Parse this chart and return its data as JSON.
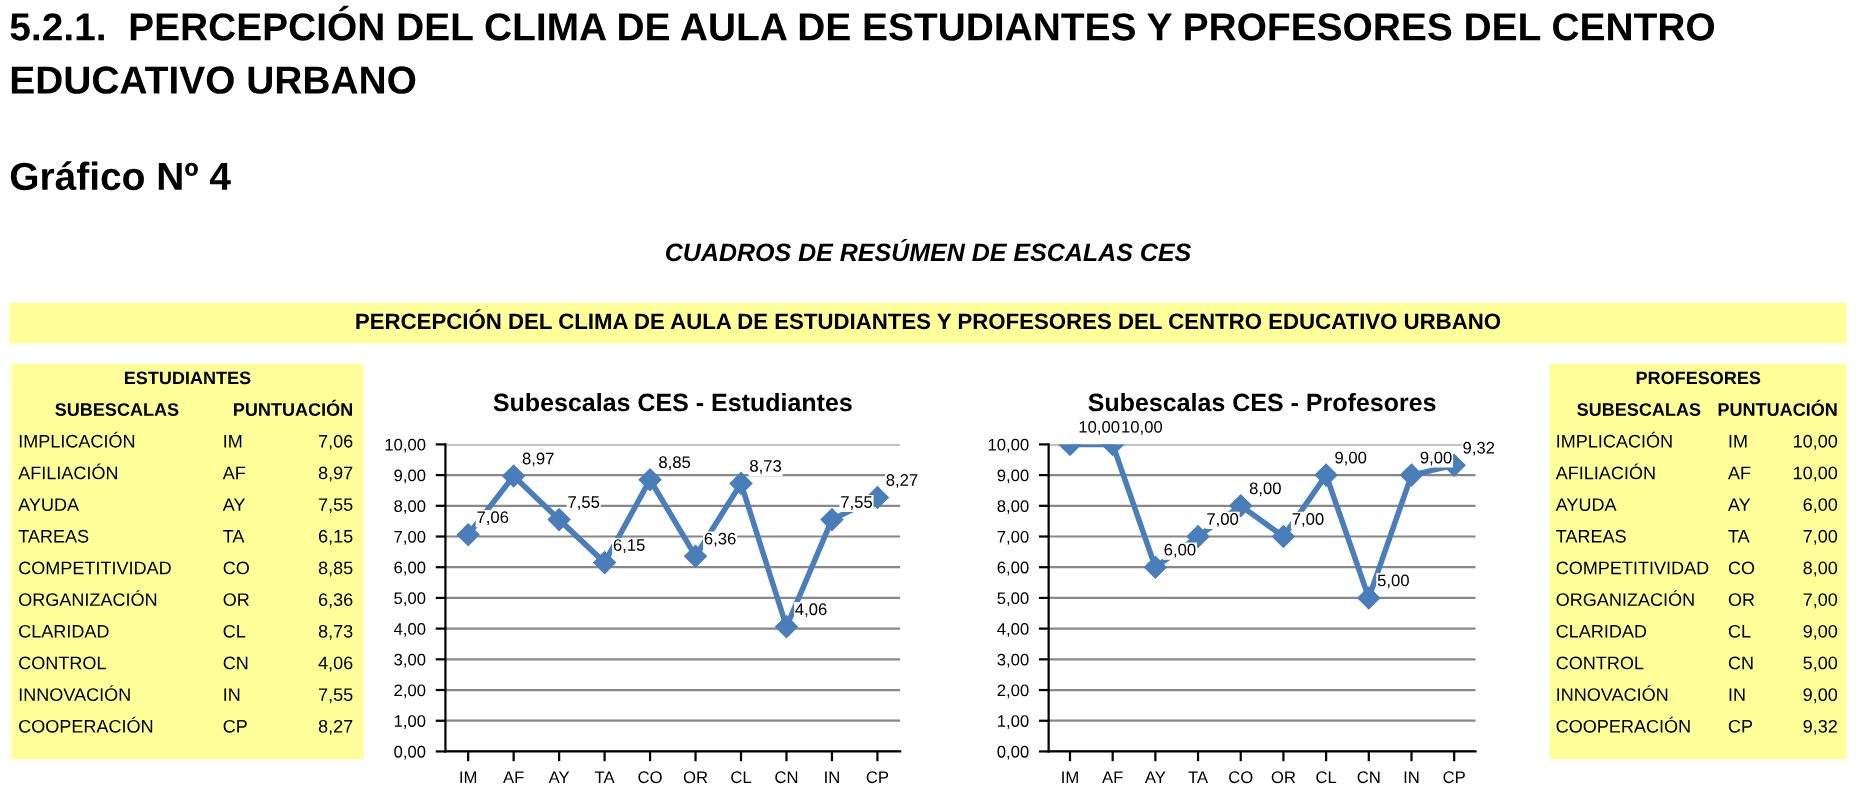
{
  "chart_data": [
    {
      "type": "other",
      "title": "5.2.1.  PERCEPCIÓN DEL CLIMA DE AULA DE ESTUDIANTES Y PROFESORES DEL CENTRO EDUCATIVO URBANO",
      "subtitle": "Gráfico Nº 4",
      "annotations": [
        "CUADROS DE RESÚMEN DE ESCALAS CES",
        "PERCEPCIÓN DEL CLIMA DE AULA DE ESTUDIANTES Y PROFESORES DEL CENTRO EDUCATIVO URBANO"
      ]
    },
    {
      "type": "other",
      "title": "ESTUDIANTES",
      "color": "#ffff99",
      "annotations": [
        "SUBESCALAS",
        "PUNTUACIÓN",
        "IMPLICACIÓN",
        "IM",
        "7,06",
        "AFILIACIÓN",
        "AF",
        "8,97",
        "AYUDA",
        "AY",
        "7,55",
        "TAREAS",
        "TA",
        "6,15",
        "COMPETITIVIDAD",
        "CO",
        "8,85",
        "ORGANIZACIÓN",
        "OR",
        "6,36",
        "CLARIDAD",
        "CL",
        "8,73",
        "CONTROL",
        "CN",
        "4,06",
        "INNOVACIÓN",
        "IN",
        "7,55",
        "COOPERACIÓN",
        "CP",
        "8,27"
      ]
    },
    {
      "type": "line",
      "title": "Subescalas CES - Estudiantes",
      "categories": [
        "IM",
        "AF",
        "AY",
        "TA",
        "CO",
        "OR",
        "CL",
        "CN",
        "IN",
        "CP"
      ],
      "series": [
        {
          "color": "#4a7ebb",
          "values": [
            7.06,
            8.97,
            7.55,
            6.15,
            8.85,
            6.36,
            8.73,
            4.06,
            7.55,
            8.27
          ],
          "value_labels": [
            "7,06",
            "8,97",
            "7,55",
            "6,15",
            "8,85",
            "6,36",
            "8,73",
            "4,06",
            "7,55",
            "8,27"
          ]
        }
      ],
      "ylim": [
        0,
        10
      ],
      "yticks": [
        {
          "value": 0,
          "label": "0,00"
        },
        {
          "value": 1,
          "label": "1,00"
        },
        {
          "value": 2,
          "label": "2,00"
        },
        {
          "value": 3,
          "label": "3,00"
        },
        {
          "value": 4,
          "label": "4,00"
        },
        {
          "value": 5,
          "label": "5,00"
        },
        {
          "value": 6,
          "label": "6,00"
        },
        {
          "value": 7,
          "label": "7,00"
        },
        {
          "value": 8,
          "label": "8,00"
        },
        {
          "value": 9,
          "label": "9,00"
        },
        {
          "value": 10,
          "label": "10,00"
        }
      ],
      "grid": "y",
      "marker": "diamond",
      "line_style": "solid"
    },
    {
      "type": "line",
      "title": "Subescalas CES - Profesores",
      "categories": [
        "IM",
        "AF",
        "AY",
        "TA",
        "CO",
        "OR",
        "CL",
        "CN",
        "IN",
        "CP"
      ],
      "series": [
        {
          "color": "#4a7ebb",
          "values": [
            10,
            10,
            6,
            7,
            8,
            7,
            9,
            5,
            9,
            9.32
          ],
          "value_labels": [
            "10,00",
            "10,00",
            "6,00",
            "7,00",
            "8,00",
            "7,00",
            "9,00",
            "5,00",
            "9,00",
            "9,32"
          ]
        }
      ],
      "ylim": [
        0,
        10
      ],
      "yticks": [
        {
          "value": 0,
          "label": "0,00"
        },
        {
          "value": 1,
          "label": "1,00"
        },
        {
          "value": 2,
          "label": "2,00"
        },
        {
          "value": 3,
          "label": "3,00"
        },
        {
          "value": 4,
          "label": "4,00"
        },
        {
          "value": 5,
          "label": "5,00"
        },
        {
          "value": 6,
          "label": "6,00"
        },
        {
          "value": 7,
          "label": "7,00"
        },
        {
          "value": 8,
          "label": "8,00"
        },
        {
          "value": 9,
          "label": "9,00"
        },
        {
          "value": 10,
          "label": "10,00"
        }
      ],
      "grid": "y",
      "marker": "diamond",
      "line_style": "solid"
    },
    {
      "type": "other",
      "title": "PROFESORES",
      "color": "#ffff99",
      "annotations": [
        "SUBESCALAS",
        "PUNTUACIÓN",
        "IMPLICACIÓN",
        "IM",
        "10,00",
        "AFILIACIÓN",
        "AF",
        "10,00",
        "AYUDA",
        "AY",
        "6,00",
        "TAREAS",
        "TA",
        "7,00",
        "COMPETITIVIDAD",
        "CO",
        "8,00",
        "ORGANIZACIÓN",
        "OR",
        "7,00",
        "CLARIDAD",
        "CL",
        "9,00",
        "CONTROL",
        "CN",
        "5,00",
        "INNOVACIÓN",
        "IN",
        "9,00",
        "COOPERACIÓN",
        "CP",
        "9,32"
      ]
    }
  ]
}
